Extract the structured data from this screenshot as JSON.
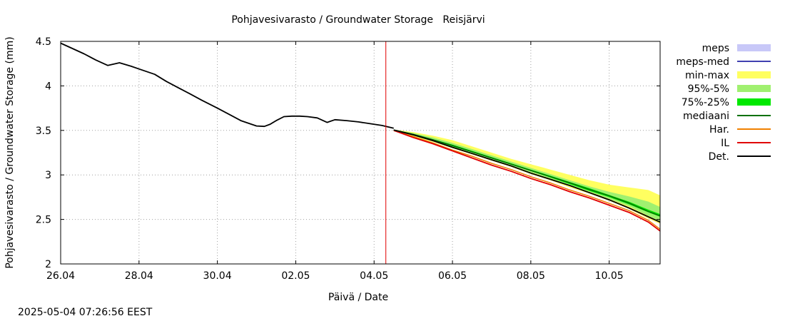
{
  "timestamp": "2025-05-04 07:26:56 EEST",
  "chart_data": {
    "type": "area",
    "title": "Pohjavesivarasto / Groundwater Storage   Reisjärvi",
    "xlabel": "Päivä / Date",
    "ylabel": "Pohjavesivarasto / Groundwater Storage (mm)",
    "grid": true,
    "xlim": [
      0,
      15.3
    ],
    "ylim": [
      2,
      4.5
    ],
    "x_ticks": [
      {
        "x": 0,
        "label": "26.04"
      },
      {
        "x": 2,
        "label": "28.04"
      },
      {
        "x": 4,
        "label": "30.04"
      },
      {
        "x": 6,
        "label": "02.05"
      },
      {
        "x": 8,
        "label": "04.05"
      },
      {
        "x": 10,
        "label": "06.05"
      },
      {
        "x": 12,
        "label": "08.05"
      },
      {
        "x": 14,
        "label": "10.05"
      }
    ],
    "y_ticks": [
      {
        "y": 2,
        "label": "2"
      },
      {
        "y": 2.5,
        "label": "2.5"
      },
      {
        "y": 3,
        "label": "3"
      },
      {
        "y": 3.5,
        "label": "3.5"
      },
      {
        "y": 4,
        "label": "4"
      },
      {
        "y": 4.5,
        "label": "4.5"
      }
    ],
    "forecast_start_x": 8.3,
    "legend": [
      {
        "name": "meps",
        "color": "#c8c8f8",
        "kind": "box"
      },
      {
        "name": "meps-med",
        "color": "#4040b0",
        "kind": "line"
      },
      {
        "name": "min-max",
        "color": "#ffff60",
        "kind": "box"
      },
      {
        "name": "95%-5%",
        "color": "#a0f070",
        "kind": "box"
      },
      {
        "name": "75%-25%",
        "color": "#00e800",
        "kind": "box"
      },
      {
        "name": "mediaani",
        "color": "#007000",
        "kind": "line"
      },
      {
        "name": "Har.",
        "color": "#f08000",
        "kind": "line"
      },
      {
        "name": "IL",
        "color": "#e00000",
        "kind": "line"
      },
      {
        "name": "Det.",
        "color": "#000000",
        "kind": "line"
      }
    ],
    "history": {
      "name": "Det.",
      "x": [
        0,
        0.3,
        0.6,
        0.9,
        1.2,
        1.5,
        1.8,
        2.0,
        2.4,
        2.7,
        3.0,
        3.3,
        3.6,
        4.0,
        4.3,
        4.6,
        5.0,
        5.2,
        5.35,
        5.5,
        5.7,
        5.9,
        6.1,
        6.3,
        6.55,
        6.8,
        7.0,
        7.3,
        7.6,
        7.9,
        8.2,
        8.5
      ],
      "y": [
        4.48,
        4.42,
        4.36,
        4.29,
        4.23,
        4.26,
        4.22,
        4.19,
        4.13,
        4.05,
        3.98,
        3.91,
        3.84,
        3.75,
        3.68,
        3.61,
        3.55,
        3.545,
        3.57,
        3.61,
        3.655,
        3.66,
        3.66,
        3.655,
        3.64,
        3.59,
        3.62,
        3.61,
        3.595,
        3.575,
        3.555,
        3.525
      ]
    },
    "forecast": {
      "x": [
        8.5,
        9.0,
        9.5,
        10.0,
        10.5,
        11.0,
        11.5,
        12.0,
        12.5,
        13.0,
        13.5,
        14.0,
        14.5,
        15.0,
        15.3
      ],
      "min": [
        3.49,
        3.43,
        3.37,
        3.3,
        3.23,
        3.16,
        3.09,
        3.01,
        2.94,
        2.86,
        2.79,
        2.71,
        2.62,
        2.51,
        2.45
      ],
      "max": [
        3.51,
        3.48,
        3.44,
        3.39,
        3.32,
        3.25,
        3.18,
        3.12,
        3.06,
        3.0,
        2.94,
        2.89,
        2.86,
        2.83,
        2.77
      ],
      "p5": [
        3.5,
        3.44,
        3.38,
        3.31,
        3.24,
        3.17,
        3.1,
        3.03,
        2.96,
        2.88,
        2.81,
        2.73,
        2.65,
        2.54,
        2.48
      ],
      "p95": [
        3.51,
        3.47,
        3.42,
        3.36,
        3.29,
        3.22,
        3.15,
        3.08,
        3.01,
        2.94,
        2.87,
        2.81,
        2.76,
        2.7,
        2.64
      ],
      "p25": [
        3.5,
        3.455,
        3.39,
        3.32,
        3.255,
        3.185,
        3.115,
        3.045,
        2.97,
        2.895,
        2.82,
        2.75,
        2.67,
        2.58,
        2.53
      ],
      "p75": [
        3.51,
        3.46,
        3.4,
        3.34,
        3.27,
        3.2,
        3.13,
        3.06,
        2.99,
        2.92,
        2.85,
        2.775,
        2.7,
        2.61,
        2.56
      ],
      "median": [
        3.505,
        3.455,
        3.395,
        3.33,
        3.26,
        3.19,
        3.12,
        3.05,
        2.98,
        2.91,
        2.835,
        2.765,
        2.685,
        2.59,
        2.54
      ],
      "det": [
        3.505,
        3.45,
        3.385,
        3.31,
        3.24,
        3.17,
        3.1,
        3.02,
        2.95,
        2.88,
        2.8,
        2.72,
        2.63,
        2.53,
        2.47
      ],
      "il": [
        3.5,
        3.42,
        3.35,
        3.27,
        3.19,
        3.11,
        3.04,
        2.96,
        2.89,
        2.81,
        2.74,
        2.66,
        2.58,
        2.47,
        2.37
      ],
      "har": [
        3.5,
        3.43,
        3.36,
        3.28,
        3.21,
        3.13,
        3.06,
        2.98,
        2.91,
        2.83,
        2.76,
        2.68,
        2.6,
        2.49,
        2.39
      ]
    }
  }
}
